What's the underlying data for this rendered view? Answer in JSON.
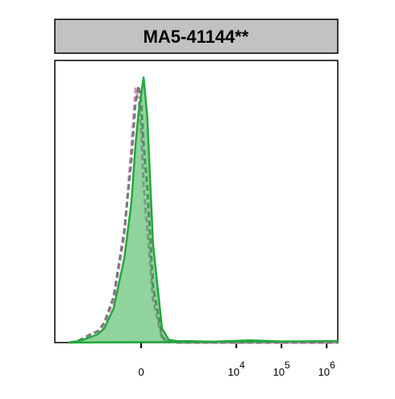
{
  "chart_data": {
    "type": "histogram-line",
    "title": "MA5-41144**",
    "xscale": "biexponential",
    "x": [
      -3000,
      -2000,
      -1500,
      -1000,
      -700,
      -500,
      -300,
      -150,
      -80,
      -45,
      -20,
      0,
      20,
      50,
      100,
      200,
      300,
      500,
      1000,
      3000,
      20000,
      100000,
      1000000,
      1760000
    ],
    "series": [
      {
        "color": "#d68bd0",
        "dash": true,
        "fill": false,
        "values": [
          0,
          0.5,
          1.5,
          3,
          4,
          6,
          15,
          38,
          70,
          90,
          86,
          75,
          55,
          40,
          15,
          1.5,
          0.3,
          0,
          0,
          0,
          0,
          0,
          0,
          0
        ]
      },
      {
        "color": "#7a7a7a",
        "dash": true,
        "fill": false,
        "values": [
          0,
          0.5,
          1.5,
          3,
          4,
          7,
          16,
          40,
          65,
          85,
          91,
          85,
          70,
          55,
          20,
          2,
          0.5,
          0,
          0,
          0,
          0,
          0,
          0,
          0
        ]
      },
      {
        "color": "#22a83c",
        "dash": false,
        "fill": true,
        "values": [
          0,
          0.5,
          1,
          2,
          3,
          5,
          12,
          30,
          50,
          70,
          82,
          88,
          94,
          80,
          35,
          5,
          1,
          0.5,
          0.5,
          0.3,
          0.8,
          0.4,
          0.5,
          0.5
        ]
      }
    ],
    "xlim": [
      -6350,
      1760000
    ],
    "xticks": [
      0,
      {
        "value": 10000,
        "label": "10",
        "exponent": "4"
      },
      {
        "value": 100000,
        "label": "10",
        "exponent": "5"
      },
      {
        "value": 1000000,
        "label": "10",
        "exponent": "6"
      }
    ],
    "ylim": [
      0,
      100
    ]
  }
}
